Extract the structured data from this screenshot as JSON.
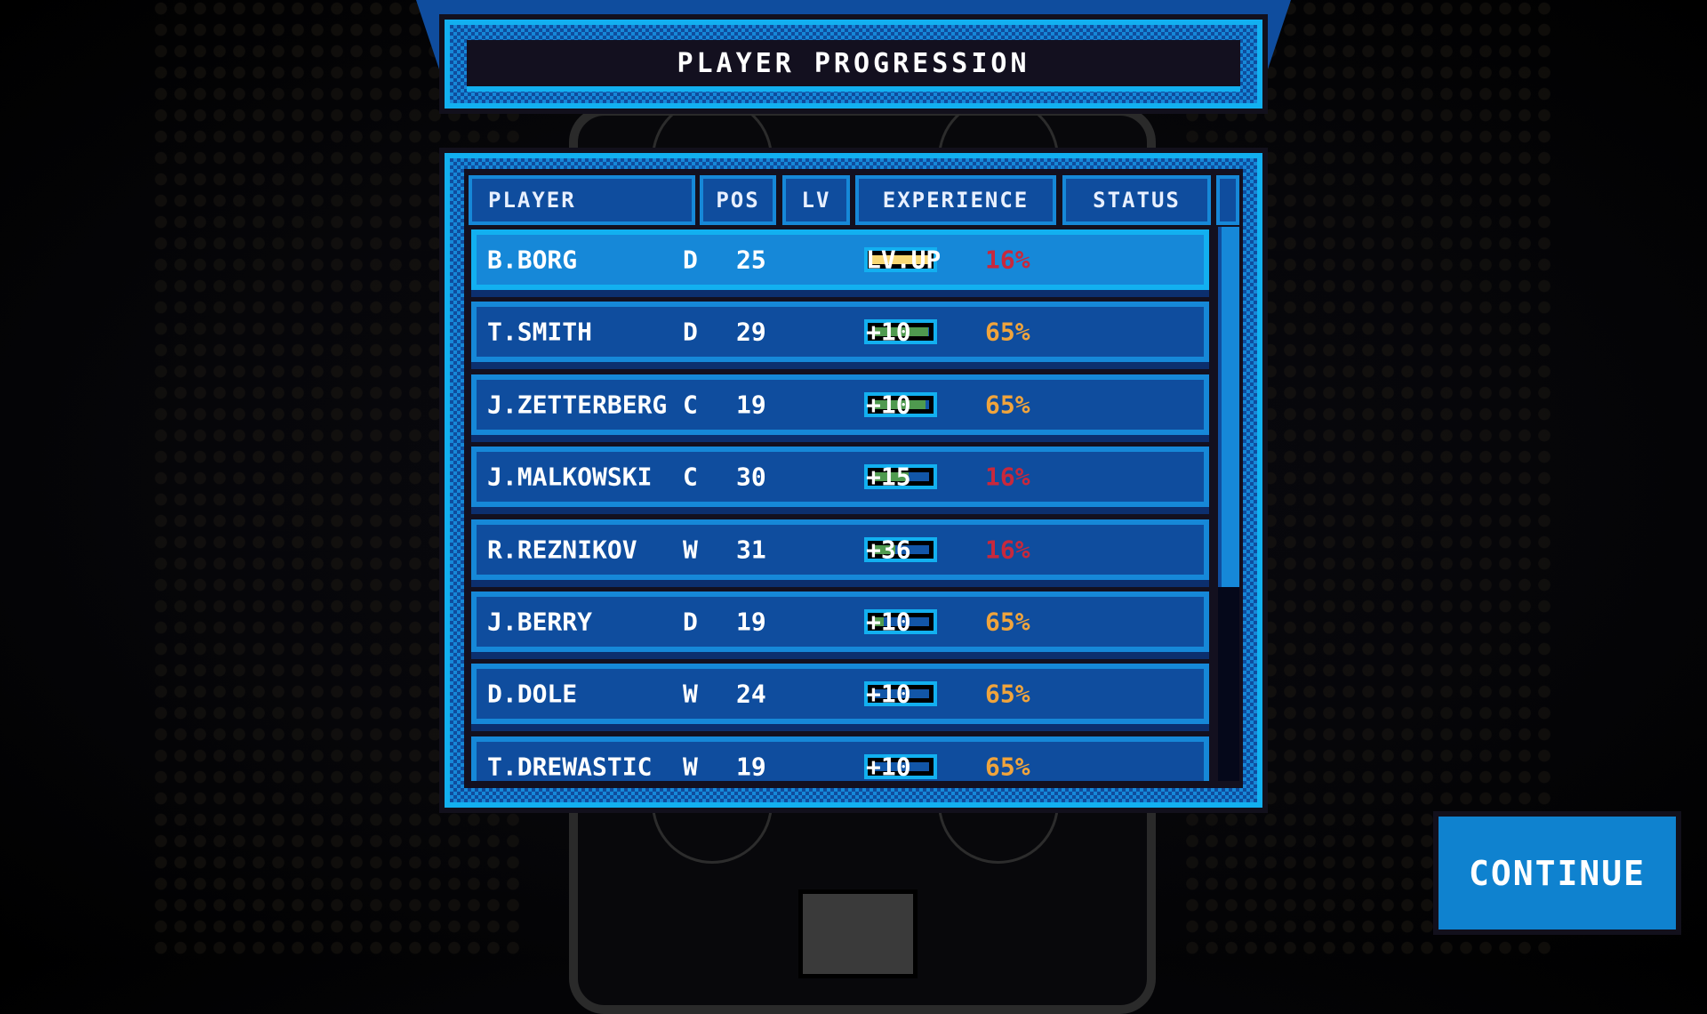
{
  "title": "PLAYER PROGRESSION",
  "columns": {
    "player": "PLAYER",
    "pos": "POS",
    "lv": "LV",
    "experience": "EXPERIENCE",
    "status": "STATUS"
  },
  "colors": {
    "exp_fill": "#4f9a4f",
    "levelup_fill": "#f7d874",
    "status_high": "#f0a43c",
    "status_low": "#c8283c",
    "accent": "#12b0f0"
  },
  "players": [
    {
      "name": "B.BORG",
      "pos": "D",
      "lv": "25",
      "exp_progress": 1.0,
      "exp_text": "LV.UP",
      "status": "16%",
      "status_level": "low",
      "selected": true
    },
    {
      "name": "T.SMITH",
      "pos": "D",
      "lv": "29",
      "exp_progress": 0.98,
      "exp_text": "+10",
      "status": "65%",
      "status_level": "high"
    },
    {
      "name": "J.ZETTERBERG",
      "pos": "C",
      "lv": "19",
      "exp_progress": 0.94,
      "exp_text": "+10",
      "status": "65%",
      "status_level": "high"
    },
    {
      "name": "J.MALKOWSKI",
      "pos": "C",
      "lv": "30",
      "exp_progress": 0.64,
      "exp_text": "+15",
      "status": "16%",
      "status_level": "low"
    },
    {
      "name": "R.REZNIKOV",
      "pos": "W",
      "lv": "31",
      "exp_progress": 0.41,
      "exp_text": "+36",
      "status": "16%",
      "status_level": "low"
    },
    {
      "name": "J.BERRY",
      "pos": "D",
      "lv": "19",
      "exp_progress": 0.2,
      "exp_text": "+10",
      "status": "65%",
      "status_level": "high"
    },
    {
      "name": "D.DOLE",
      "pos": "W",
      "lv": "24",
      "exp_progress": 0.05,
      "exp_text": "+10",
      "status": "65%",
      "status_level": "high"
    },
    {
      "name": "T.DREWASTIC",
      "pos": "W",
      "lv": "19",
      "exp_progress": 0.05,
      "exp_text": "+10",
      "status": "65%",
      "status_level": "high"
    }
  ],
  "scroll_position": 0,
  "continue_label": "CONTINUE"
}
